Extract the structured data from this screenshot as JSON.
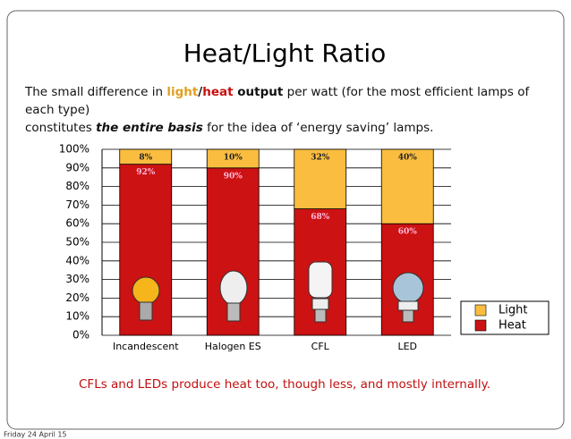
{
  "title": "Heat/Light Ratio",
  "subtitle": [
    [
      "The small difference in ",
      "light",
      "/",
      "heat",
      " output",
      " per watt (for the most efficient lamps of each type)"
    ],
    [
      "constitutes ",
      "the entire basis",
      " for the idea of ‘energy saving’ lamps."
    ]
  ],
  "chart_data": {
    "type": "stacked_bar",
    "categories": [
      "Incandescent",
      "Halogen ES",
      "CFL",
      "LED"
    ],
    "series": [
      {
        "name": "Heat",
        "color": "#cc1212",
        "values": [
          92,
          90,
          68,
          60
        ],
        "value_labels": [
          "92%",
          "90%",
          "68%",
          "60%"
        ]
      },
      {
        "name": "Light",
        "color": "#fbbd3f",
        "values": [
          8,
          10,
          32,
          40
        ],
        "value_labels": [
          "8%",
          "10%",
          "32%",
          "40%"
        ]
      }
    ],
    "ylim": [
      0,
      100
    ],
    "yticks": [
      {
        "value": 0,
        "label": "0%"
      },
      {
        "value": 10,
        "label": "10%"
      },
      {
        "value": 20,
        "label": "20%"
      },
      {
        "value": 30,
        "label": "30%"
      },
      {
        "value": 40,
        "label": "40%"
      },
      {
        "value": 50,
        "label": "50%"
      },
      {
        "value": 60,
        "label": "60%"
      },
      {
        "value": 70,
        "label": "70%"
      },
      {
        "value": 80,
        "label": "80%"
      },
      {
        "value": 90,
        "label": "90%"
      },
      {
        "value": 100,
        "label": "100%"
      }
    ],
    "grid": true,
    "legend": "right",
    "annotation": "CFLs and LEDs produce heat too, though less, and mostly internally."
  },
  "footer": "Friday 24 April 15"
}
